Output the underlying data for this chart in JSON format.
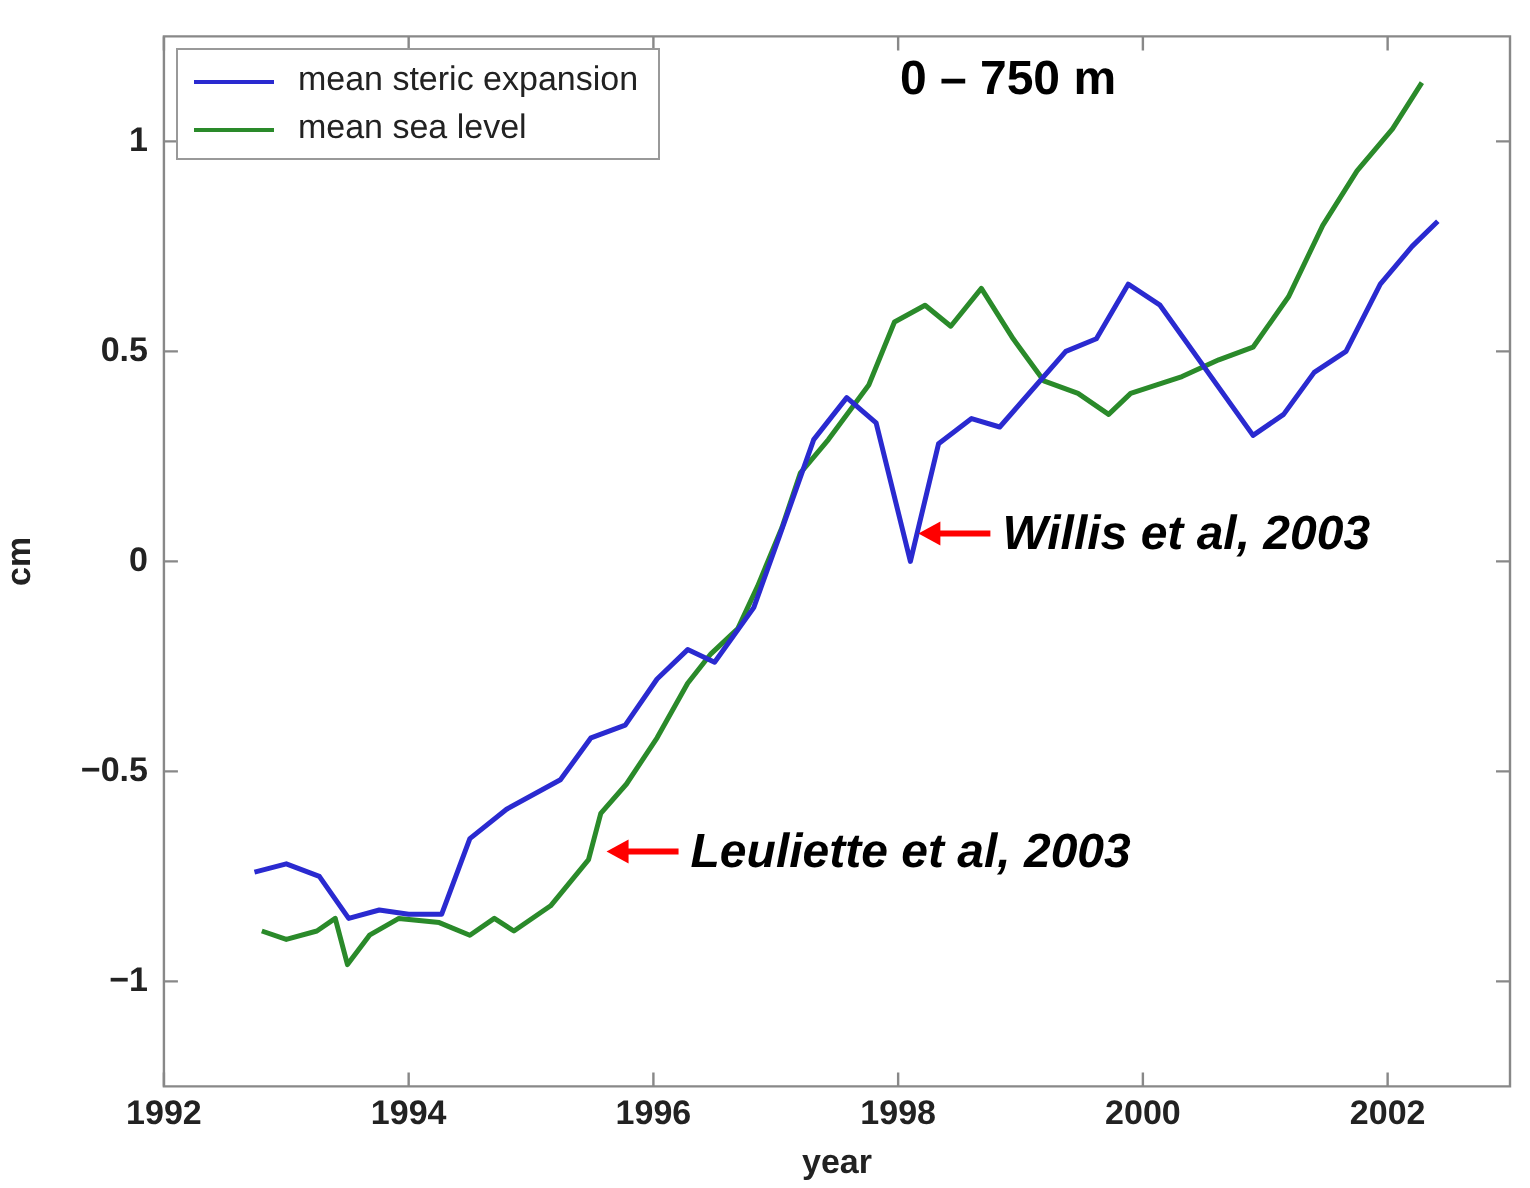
{
  "chart_data": {
    "type": "line",
    "xlabel": "year",
    "ylabel": "cm",
    "xlim": [
      1992,
      2003.0
    ],
    "xticks": [
      1992,
      1994,
      1996,
      1998,
      2000,
      2002
    ],
    "ylim": [
      -1.25,
      1.25
    ],
    "yticks": [
      -1,
      -0.5,
      0,
      0.5,
      1
    ],
    "grid": false,
    "legend": "top left",
    "marker": "none",
    "line_style": "solid",
    "series": [
      {
        "name": "mean steric expansion",
        "color": "#2a2ad0",
        "x": [
          1992.74,
          1993.0,
          1993.27,
          1993.51,
          1993.76,
          1994.0,
          1994.27,
          1994.5,
          1994.8,
          1995.24,
          1995.49,
          1995.77,
          1996.03,
          1996.28,
          1996.5,
          1996.82,
          1997.03,
          1997.31,
          1997.58,
          1997.82,
          1998.1,
          1998.33,
          1998.6,
          1998.83,
          1999.37,
          1999.62,
          1999.88,
          2000.14,
          2000.9,
          2001.15,
          2001.4,
          2001.66,
          2001.94,
          2002.2,
          2002.41
        ],
        "values": [
          -0.74,
          -0.72,
          -0.75,
          -0.85,
          -0.83,
          -0.84,
          -0.84,
          -0.66,
          -0.59,
          -0.52,
          -0.42,
          -0.39,
          -0.28,
          -0.21,
          -0.24,
          -0.11,
          0.06,
          0.29,
          0.39,
          0.33,
          0.0,
          0.28,
          0.34,
          0.32,
          0.5,
          0.53,
          0.66,
          0.61,
          0.3,
          0.35,
          0.45,
          0.5,
          0.66,
          0.75,
          0.81
        ]
      },
      {
        "name": "mean sea level",
        "color": "#2a8a2a",
        "x": [
          1992.8,
          1993.0,
          1993.25,
          1993.4,
          1993.5,
          1993.68,
          1993.92,
          1994.25,
          1994.5,
          1994.7,
          1994.86,
          1995.16,
          1995.47,
          1995.57,
          1995.78,
          1996.03,
          1996.28,
          1996.47,
          1996.69,
          1996.85,
          1997.05,
          1997.2,
          1997.43,
          1997.76,
          1997.97,
          1998.22,
          1998.43,
          1998.68,
          1998.94,
          1999.19,
          1999.47,
          1999.72,
          1999.9,
          2000.32,
          2000.62,
          2000.9,
          2001.19,
          2001.47,
          2001.75,
          2002.04,
          2002.28
        ],
        "values": [
          -0.88,
          -0.9,
          -0.88,
          -0.85,
          -0.96,
          -0.89,
          -0.85,
          -0.86,
          -0.89,
          -0.85,
          -0.88,
          -0.82,
          -0.71,
          -0.6,
          -0.53,
          -0.42,
          -0.29,
          -0.22,
          -0.16,
          -0.06,
          0.08,
          0.21,
          0.29,
          0.42,
          0.57,
          0.61,
          0.56,
          0.65,
          0.53,
          0.43,
          0.4,
          0.35,
          0.4,
          0.44,
          0.48,
          0.51,
          0.63,
          0.8,
          0.93,
          1.03,
          1.14
        ]
      }
    ],
    "annotations": [
      "0 – 750 m",
      {
        "text": "Willis et al, 2003",
        "x": 1998.1,
        "y": 0.0
      },
      {
        "text": "Leuliette et al, 2003",
        "x": 1995.47,
        "y": -0.71
      }
    ]
  }
}
